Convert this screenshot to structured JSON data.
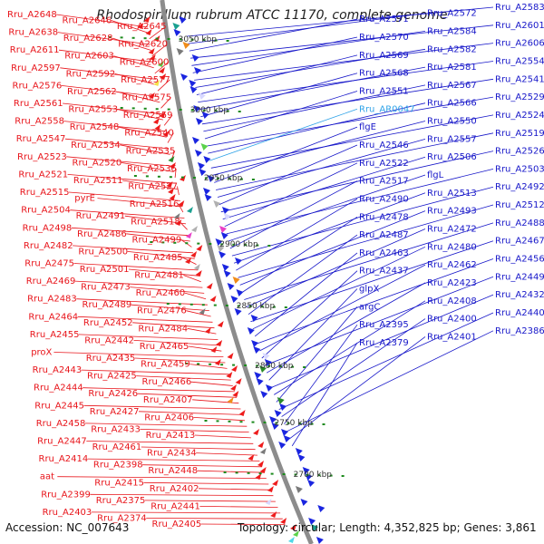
{
  "title": "Rhodospirillum rubrum ATCC 11170, complete genome",
  "footer": {
    "accession_label": "Accession: NC_007643",
    "topology_label": "Topology: circular; Length: 4,352,825 bp; Genes: 3,861"
  },
  "colors": {
    "forward_label": "#e8141a",
    "reverse_label": "#1717c9",
    "rna_label": "#2fa3e8",
    "backbone": "#8c8c8c",
    "tick": "#1c8a1c",
    "forward_feature": "#ee1c1c",
    "reverse_feature": "#1a25e0"
  },
  "scale_ticks": [
    "3050 kbp",
    "3000 kbp",
    "2950 kbp",
    "2900 kbp",
    "2850 kbp",
    "2800 kbp",
    "2750 kbp",
    "2700 kbp"
  ],
  "left_labels": [
    "Rru_A2648",
    "Rru_A2646",
    "Rru_A2645",
    "Rru_A2638",
    "Rru_A2628",
    "Rru_A2620",
    "Rru_A2611",
    "Rru_A2603",
    "Rru_A2600",
    "Rru_A2597",
    "Rru_A2592",
    "Rru_A2577",
    "Rru_A2576",
    "Rru_A2562",
    "Rru_A2575",
    "Rru_A2561",
    "Rru_A2553",
    "Rru_A2559",
    "Rru_A2558",
    "Rru_A2548",
    "Rru_A2540",
    "Rru_A2547",
    "Rru_A2534",
    "Rru_A2535",
    "Rru_A2523",
    "Rru_A2520",
    "Rru_A2536",
    "Rru_A2521",
    "Rru_A2511",
    "Rru_A2527",
    "Rru_A2515",
    "pyrE",
    "Rru_A2516",
    "Rru_A2504",
    "Rru_A2491",
    "Rru_A2518",
    "Rru_A2498",
    "Rru_A2486",
    "Rru_A2499",
    "Rru_A2482",
    "Rru_A2500",
    "Rru_A2485",
    "Rru_A2475",
    "Rru_A2501",
    "Rru_A2481",
    "Rru_A2469",
    "Rru_A2473",
    "Rru_A2460",
    "Rru_A2483",
    "Rru_A2489",
    "Rru_A2476",
    "Rru_A2464",
    "Rru_A2452",
    "Rru_A2484",
    "Rru_A2455",
    "Rru_A2442",
    "Rru_A2465",
    "proX",
    "Rru_A2435",
    "Rru_A2459",
    "Rru_A2443",
    "Rru_A2425",
    "Rru_A2466",
    "Rru_A2444",
    "Rru_A2426",
    "Rru_A2407",
    "Rru_A2445",
    "Rru_A2427",
    "Rru_A2406",
    "Rru_A2458",
    "Rru_A2433",
    "Rru_A2413",
    "Rru_A2447",
    "Rru_A2461",
    "Rru_A2434",
    "Rru_A2414",
    "Rru_A2398",
    "Rru_A2448",
    "aat",
    "Rru_A2415",
    "Rru_A2402",
    "Rru_A2399",
    "Rru_A2375",
    "Rru_A2441",
    "Rru_A2403",
    "Rru_A2374",
    "Rru_A2405"
  ],
  "right_labels": [
    "Rru_A2583",
    "Rru_A2572",
    "Rru_A2571",
    "Rru_A2601",
    "Rru_A2584",
    "Rru_A2570",
    "Rru_A2606",
    "Rru_A2582",
    "Rru_A2569",
    "Rru_A2554",
    "Rru_A2581",
    "Rru_A2568",
    "Rru_A2541",
    "Rru_A2567",
    "Rru_A2551",
    "Rru_A2529",
    "Rru_A2566",
    "Rru_AR0047",
    "Rru_A2524",
    "Rru_A2550",
    "flgE",
    "Rru_A2519",
    "Rru_A2557",
    "Rru_A2546",
    "Rru_A2526",
    "Rru_A2506",
    "Rru_A2522",
    "Rru_A2503",
    "flgL",
    "Rru_A2517",
    "Rru_A2492",
    "Rru_A2513",
    "Rru_A2490",
    "Rru_A2512",
    "Rru_A2493",
    "Rru_A2478",
    "Rru_A2488",
    "Rru_A2472",
    "Rru_A2487",
    "Rru_A2467",
    "Rru_A2480",
    "Rru_A2463",
    "Rru_A2456",
    "Rru_A2462",
    "Rru_A2437",
    "Rru_A2449",
    "Rru_A2423",
    "glpX",
    "Rru_A2432",
    "Rru_A2408",
    "argC",
    "Rru_A2440",
    "Rru_A2400",
    "Rru_A2395",
    "Rru_A2386",
    "Rru_A2401",
    "Rru_A2379"
  ]
}
